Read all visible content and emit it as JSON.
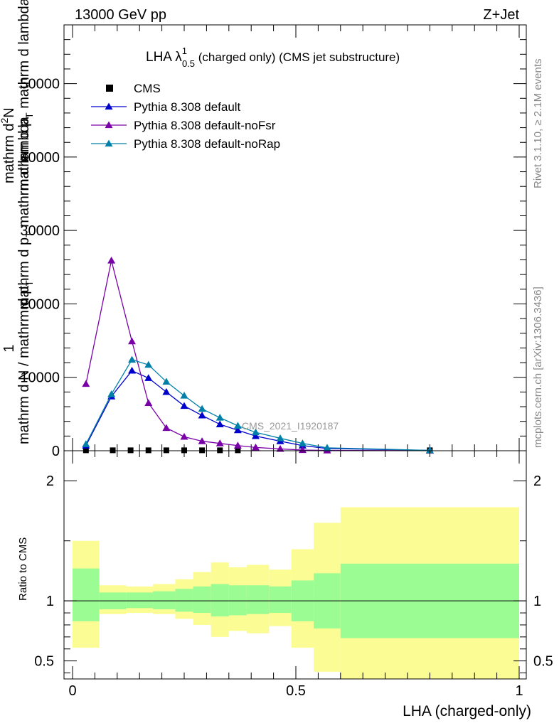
{
  "header": {
    "left": "13000 GeV pp",
    "right": "Z+Jet"
  },
  "side_labels": {
    "rivet": "Rivet 3.1.10, ≥ 2.1M events",
    "mcplots": "mcplots.cern.ch [arXiv:1306.3436]"
  },
  "chart_data": [
    {
      "type": "line",
      "title": "LHA λ",
      "title_sup": "1",
      "title_sub": "0.5",
      "title_suffix": " (charged only) (CMS jet substructure)",
      "watermark": "CMS_2021_I1920187",
      "ylabel_top": "1",
      "ylabel_lines": [
        "mathrm dN / mathrm d p",
        "mathrm d p",
        "mathrm d²N",
        "mathrm d p",
        "mathrm d lambda"
      ],
      "ylabel_line1": "mathrm d N / mathrm d p",
      "ylabel_line1_sub": "T",
      "ylabel_line2": "mathrm d p",
      "ylabel_line2_sub": "T",
      "ylabel_line2_suffix": " mathrm d lambda",
      "ylabel_line3": "mathrm d",
      "ylabel_line3_sup": "2",
      "ylabel_line3_suffix": "N",
      "xlim": [
        0,
        1
      ],
      "ylim": [
        0,
        58000
      ],
      "yticks": [
        0,
        10000,
        20000,
        30000,
        40000,
        50000
      ],
      "ytick_labels": [
        "0",
        "10000",
        "20000",
        "30000",
        "40000",
        "50000"
      ],
      "legend_position": "top-left",
      "series": [
        {
          "name": "CMS",
          "color": "#000000",
          "marker": "square",
          "x": [
            0.03,
            0.09,
            0.13,
            0.17,
            0.21,
            0.25,
            0.29,
            0.33,
            0.37,
            0.8
          ],
          "y": [
            60,
            60,
            60,
            60,
            60,
            60,
            60,
            60,
            60,
            60
          ]
        },
        {
          "name": "Pythia 8.308 default",
          "color": "#0000cc",
          "marker": "triangle",
          "x": [
            0.03,
            0.087,
            0.133,
            0.17,
            0.21,
            0.25,
            0.29,
            0.33,
            0.37,
            0.41,
            0.465,
            0.515,
            0.57,
            0.8
          ],
          "y": [
            700,
            7400,
            10900,
            9900,
            8000,
            6100,
            4800,
            3600,
            2800,
            2000,
            1300,
            700,
            300,
            50
          ]
        },
        {
          "name": "Pythia 8.308 default-noFsr",
          "color": "#7a00a8",
          "marker": "triangle",
          "x": [
            0.03,
            0.087,
            0.133,
            0.17,
            0.21,
            0.25,
            0.29,
            0.33,
            0.37,
            0.41,
            0.465,
            0.515,
            0.57,
            0.8
          ],
          "y": [
            9100,
            25900,
            14900,
            6500,
            3100,
            1900,
            1300,
            1000,
            700,
            450,
            250,
            100,
            40,
            10
          ]
        },
        {
          "name": "Pythia 8.308 default-noRap",
          "color": "#0080a8",
          "marker": "triangle",
          "x": [
            0.03,
            0.087,
            0.133,
            0.17,
            0.21,
            0.25,
            0.29,
            0.33,
            0.37,
            0.41,
            0.465,
            0.515,
            0.57,
            0.8
          ],
          "y": [
            900,
            7700,
            12400,
            11700,
            9400,
            7500,
            5700,
            4500,
            3400,
            2500,
            1700,
            1000,
            400,
            50
          ]
        }
      ]
    },
    {
      "type": "area",
      "ylabel": "Ratio to CMS",
      "xlabel": "LHA (charged-only)",
      "xlim": [
        0,
        1
      ],
      "ylim": [
        0.35,
        2.25
      ],
      "xticks": [
        0,
        0.5,
        1
      ],
      "xtick_labels": [
        "0",
        "0.5",
        "1"
      ],
      "yticks": [
        0.5,
        1,
        2
      ],
      "ytick_labels": [
        "0.5",
        "1",
        "2"
      ],
      "reference_line": 1,
      "band_colors": {
        "inner": "#9cfc94",
        "outer": "#fcfc94"
      },
      "bins": [
        {
          "x0": 0.0,
          "x1": 0.06,
          "inner": [
            0.83,
            1.27
          ],
          "outer": [
            0.61,
            1.5
          ]
        },
        {
          "x0": 0.06,
          "x1": 0.12,
          "inner": [
            0.93,
            1.07
          ],
          "outer": [
            0.89,
            1.13
          ]
        },
        {
          "x0": 0.12,
          "x1": 0.18,
          "inner": [
            0.94,
            1.07
          ],
          "outer": [
            0.9,
            1.12
          ]
        },
        {
          "x0": 0.18,
          "x1": 0.23,
          "inner": [
            0.93,
            1.08
          ],
          "outer": [
            0.89,
            1.14
          ]
        },
        {
          "x0": 0.23,
          "x1": 0.27,
          "inner": [
            0.91,
            1.1
          ],
          "outer": [
            0.85,
            1.18
          ]
        },
        {
          "x0": 0.27,
          "x1": 0.31,
          "inner": [
            0.9,
            1.12
          ],
          "outer": [
            0.8,
            1.24
          ]
        },
        {
          "x0": 0.31,
          "x1": 0.35,
          "inner": [
            0.87,
            1.14
          ],
          "outer": [
            0.7,
            1.32
          ]
        },
        {
          "x0": 0.35,
          "x1": 0.39,
          "inner": [
            0.88,
            1.13
          ],
          "outer": [
            0.75,
            1.28
          ]
        },
        {
          "x0": 0.39,
          "x1": 0.44,
          "inner": [
            0.89,
            1.13
          ],
          "outer": [
            0.73,
            1.3
          ]
        },
        {
          "x0": 0.44,
          "x1": 0.49,
          "inner": [
            0.9,
            1.12
          ],
          "outer": [
            0.79,
            1.26
          ]
        },
        {
          "x0": 0.49,
          "x1": 0.54,
          "inner": [
            0.83,
            1.17
          ],
          "outer": [
            0.61,
            1.43
          ]
        },
        {
          "x0": 0.54,
          "x1": 0.6,
          "inner": [
            0.77,
            1.23
          ],
          "outer": [
            0.41,
            1.65
          ]
        },
        {
          "x0": 0.6,
          "x1": 1.0,
          "inner": [
            0.69,
            1.31
          ],
          "outer": [
            0.35,
            1.78
          ]
        }
      ]
    }
  ]
}
